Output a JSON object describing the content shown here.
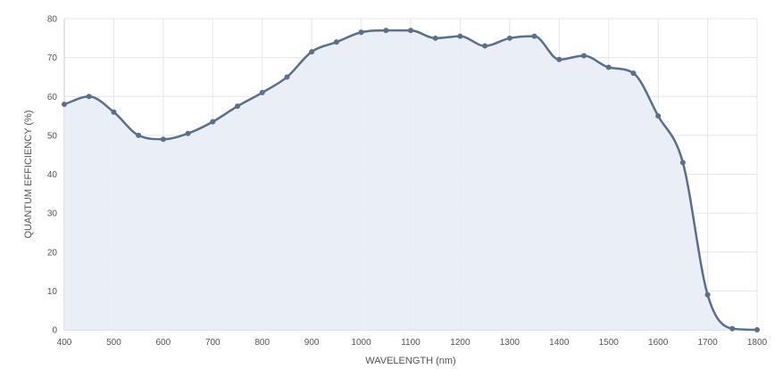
{
  "chart_data": {
    "type": "area",
    "xlabel": "WAVELENGTH (nm)",
    "ylabel": "QUANTUM EFFICIENCY (%)",
    "xlim": [
      400,
      1800
    ],
    "ylim": [
      0,
      80
    ],
    "x_ticks": [
      400,
      500,
      600,
      700,
      800,
      900,
      1000,
      1100,
      1200,
      1300,
      1400,
      1500,
      1600,
      1700,
      1800
    ],
    "y_ticks": [
      0,
      10,
      20,
      30,
      40,
      50,
      60,
      70,
      80
    ],
    "grid": true,
    "line_color": "#5a6f89",
    "fill_color": "#e8ecf5",
    "series": [
      {
        "x": [
          400,
          450,
          500,
          550,
          600,
          650,
          700,
          750,
          800,
          850,
          900,
          950,
          1000,
          1050,
          1100,
          1150,
          1200,
          1250,
          1300,
          1350,
          1400,
          1450,
          1500,
          1550,
          1600,
          1650,
          1700,
          1750,
          1800
        ],
        "y": [
          58.0,
          60.0,
          56.0,
          50.0,
          49.0,
          50.5,
          53.5,
          57.5,
          61.0,
          65.0,
          71.5,
          74.0,
          76.5,
          77.0,
          77.0,
          75.0,
          75.5,
          73.0,
          75.0,
          75.5,
          69.5,
          70.5,
          67.5,
          66.0,
          55.0,
          43.0,
          9.0,
          0.3,
          0.0
        ]
      }
    ]
  }
}
